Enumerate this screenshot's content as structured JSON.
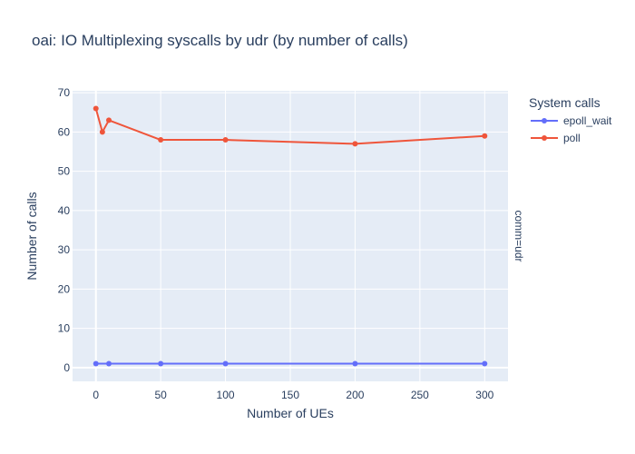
{
  "chart_data": {
    "type": "line",
    "title": "oai: IO Multiplexing syscalls by udr (by number of calls)",
    "xlabel": "Number of UEs",
    "ylabel": "Number of calls",
    "facet_label": "comm=udr",
    "legend_title": "System calls",
    "legend_position": "top-right",
    "grid": true,
    "xlim": [
      -18,
      318
    ],
    "ylim": [
      -3.5,
      70.5
    ],
    "xticks": [
      0,
      50,
      100,
      150,
      200,
      250,
      300
    ],
    "yticks": [
      0,
      10,
      20,
      30,
      40,
      50,
      60,
      70
    ],
    "series": [
      {
        "name": "epoll_wait",
        "color": "#636efa",
        "x": [
          0,
          10,
          50,
          100,
          200,
          300
        ],
        "y": [
          1,
          1,
          1,
          1,
          1,
          1
        ]
      },
      {
        "name": "poll",
        "color": "#ef553b",
        "x": [
          0,
          5,
          10,
          50,
          100,
          200,
          300
        ],
        "y": [
          66,
          60,
          63,
          58,
          58,
          57,
          59
        ]
      }
    ]
  }
}
